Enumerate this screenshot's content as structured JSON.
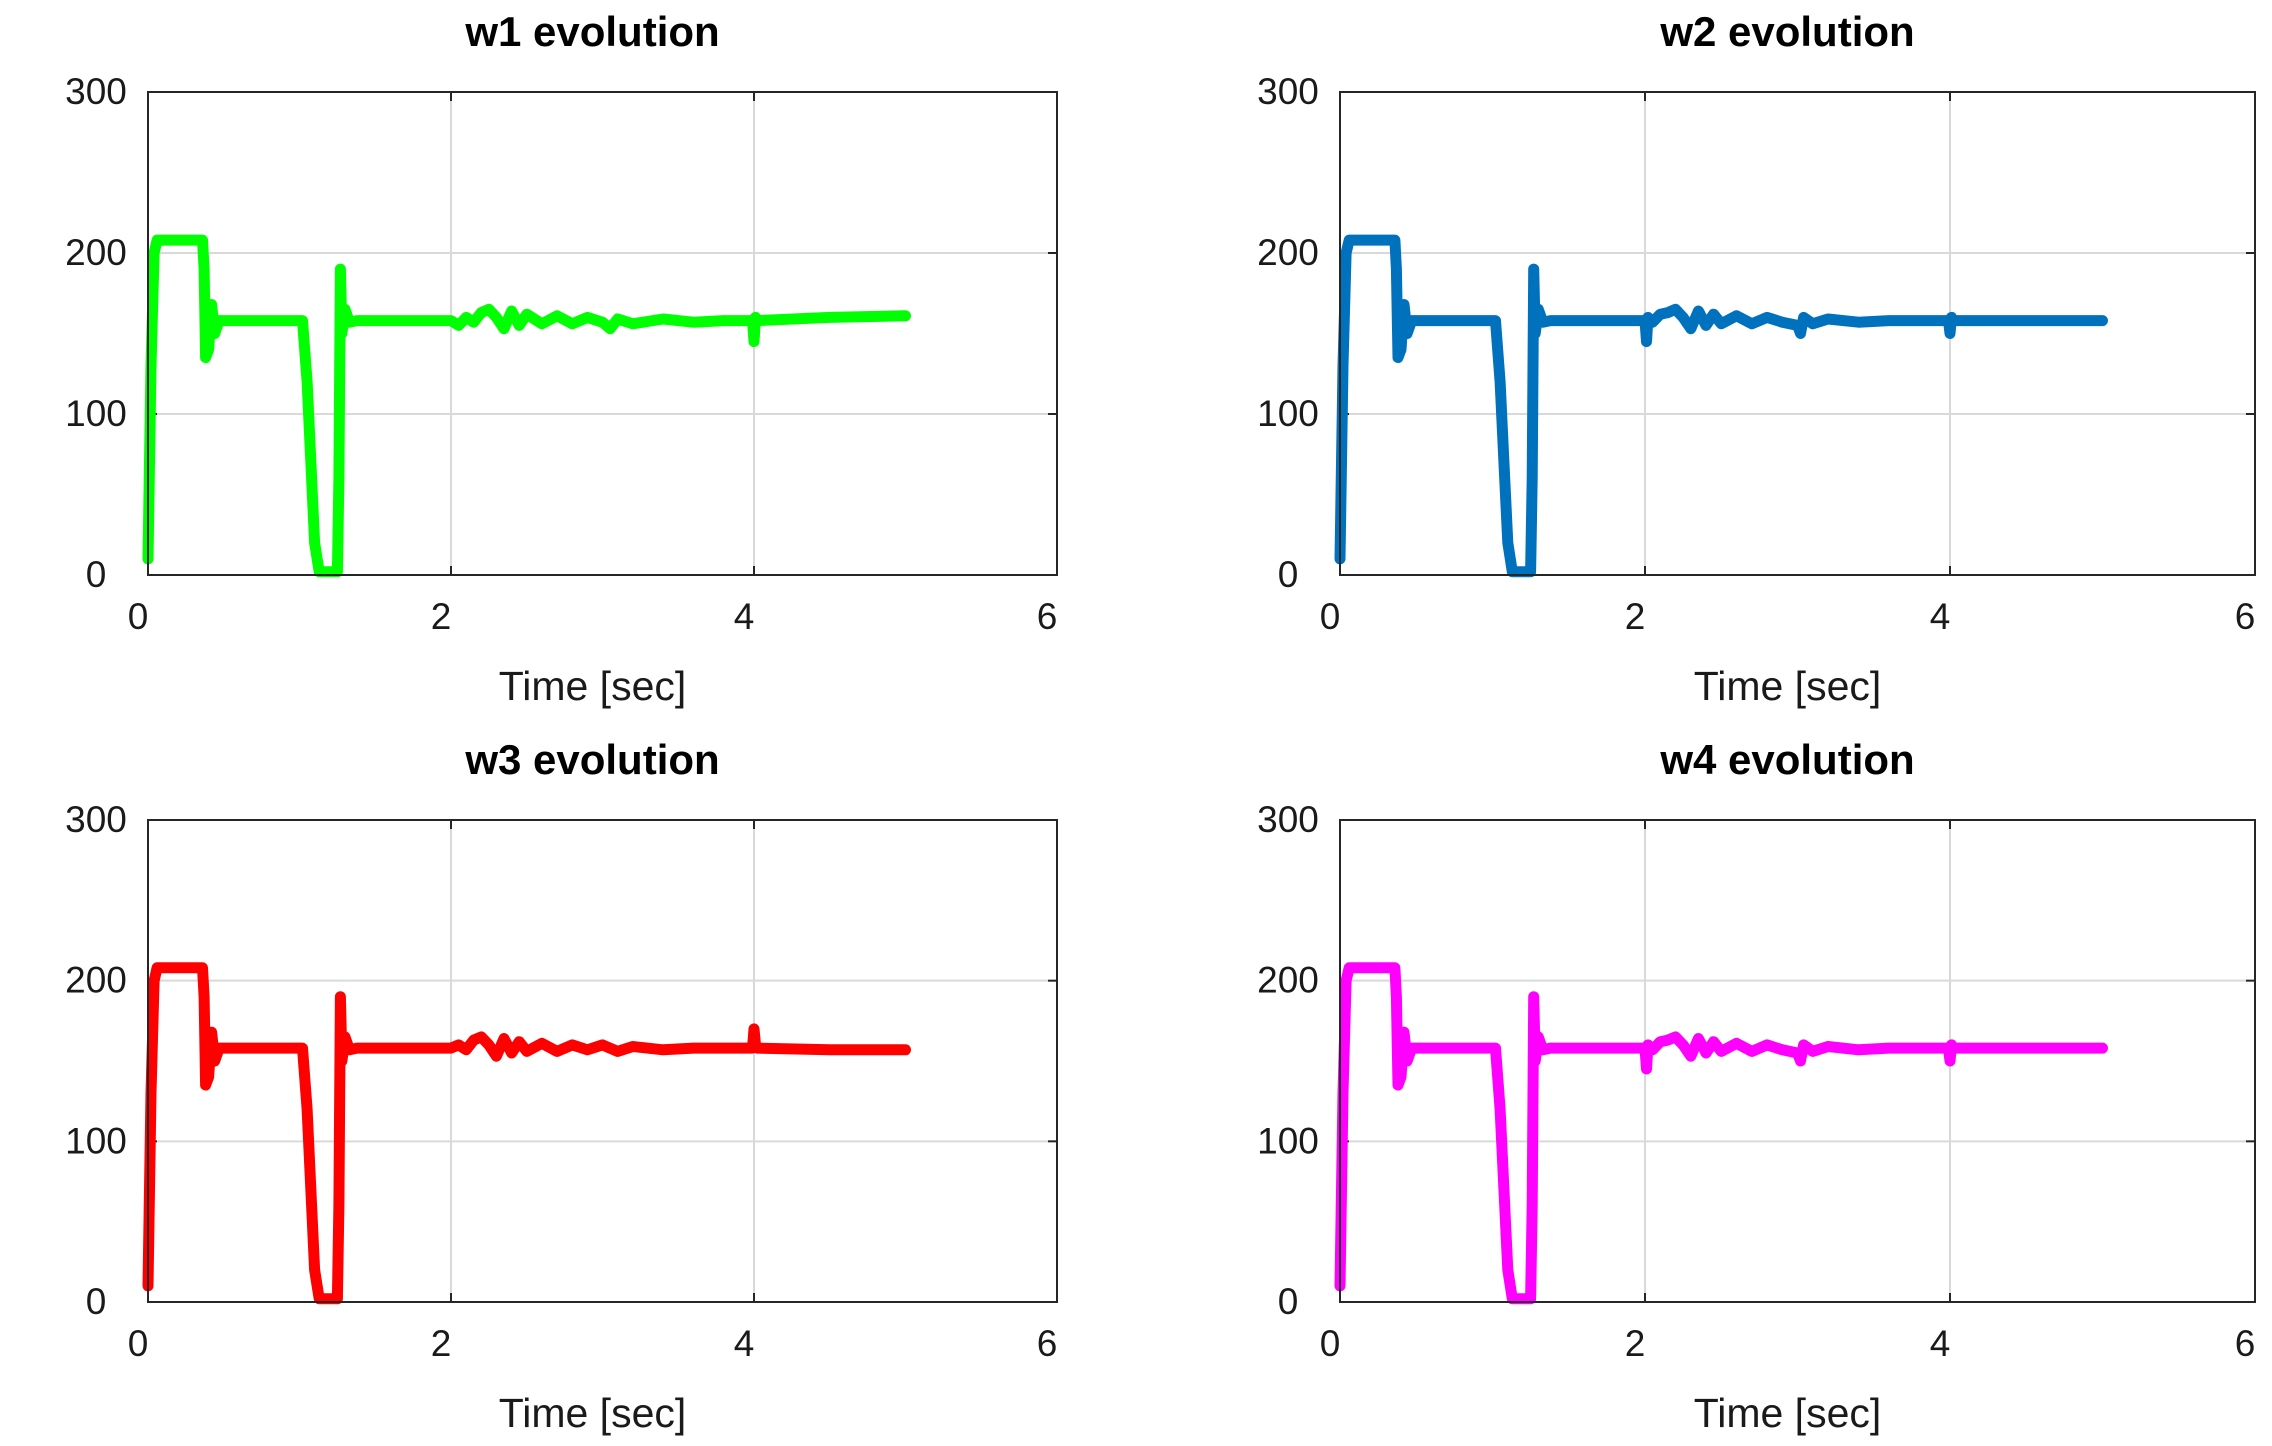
{
  "chart_data": [
    {
      "type": "line",
      "title": "w1 evolution",
      "xlabel": "Time [sec]",
      "ylabel": "",
      "xlim": [
        0,
        6
      ],
      "ylim": [
        0,
        300
      ],
      "xticks": [
        0,
        2,
        4,
        6
      ],
      "yticks": [
        0,
        100,
        200,
        300
      ],
      "grid": true,
      "series": [
        {
          "name": "w1",
          "color": "#00ff00",
          "x": [
            0,
            0.02,
            0.04,
            0.06,
            0.36,
            0.37,
            0.38,
            0.4,
            0.42,
            0.44,
            0.47,
            1.02,
            1.05,
            1.08,
            1.1,
            1.13,
            1.2,
            1.25,
            1.26,
            1.27,
            1.28,
            1.3,
            1.33,
            1.38,
            2.0,
            2.05,
            2.1,
            2.15,
            2.2,
            2.25,
            2.3,
            2.35,
            2.4,
            2.45,
            2.5,
            2.6,
            2.7,
            2.8,
            2.9,
            3.0,
            3.05,
            3.1,
            3.2,
            3.4,
            3.6,
            3.8,
            3.99,
            4.0,
            4.01,
            4.02,
            4.5,
            5.0
          ],
          "y": [
            10,
            130,
            200,
            208,
            208,
            190,
            135,
            140,
            168,
            150,
            158,
            158,
            120,
            60,
            20,
            2,
            2,
            2,
            60,
            190,
            150,
            165,
            157,
            158,
            158,
            155,
            160,
            157,
            163,
            165,
            160,
            153,
            164,
            155,
            162,
            156,
            161,
            156,
            160,
            157,
            153,
            159,
            156,
            159,
            157,
            158,
            158,
            145,
            160,
            158,
            160,
            161
          ]
        }
      ]
    },
    {
      "type": "line",
      "title": "w2 evolution",
      "xlabel": "Time [sec]",
      "ylabel": "",
      "xlim": [
        0,
        6
      ],
      "ylim": [
        0,
        300
      ],
      "xticks": [
        0,
        2,
        4,
        6
      ],
      "yticks": [
        0,
        100,
        200,
        300
      ],
      "grid": true,
      "series": [
        {
          "name": "w2",
          "color": "#0072bd",
          "x": [
            0,
            0.02,
            0.04,
            0.06,
            0.36,
            0.37,
            0.38,
            0.4,
            0.42,
            0.44,
            0.47,
            1.02,
            1.05,
            1.08,
            1.1,
            1.13,
            1.2,
            1.25,
            1.26,
            1.27,
            1.28,
            1.3,
            1.33,
            1.38,
            2.0,
            2.01,
            2.02,
            2.05,
            2.1,
            2.15,
            2.2,
            2.25,
            2.3,
            2.35,
            2.4,
            2.45,
            2.5,
            2.6,
            2.7,
            2.8,
            2.9,
            3.0,
            3.02,
            3.04,
            3.1,
            3.2,
            3.4,
            3.6,
            3.8,
            3.99,
            4.0,
            4.01,
            4.02,
            4.5,
            5.0
          ],
          "y": [
            10,
            130,
            200,
            208,
            208,
            190,
            135,
            140,
            168,
            150,
            158,
            158,
            120,
            60,
            20,
            2,
            2,
            2,
            60,
            190,
            150,
            165,
            157,
            158,
            158,
            145,
            160,
            157,
            162,
            163,
            165,
            160,
            153,
            164,
            155,
            162,
            156,
            161,
            156,
            160,
            157,
            155,
            150,
            160,
            156,
            159,
            157,
            158,
            158,
            158,
            150,
            160,
            158,
            158,
            158
          ]
        }
      ]
    },
    {
      "type": "line",
      "title": "w3 evolution",
      "xlabel": "Time [sec]",
      "ylabel": "",
      "xlim": [
        0,
        6
      ],
      "ylim": [
        0,
        300
      ],
      "xticks": [
        0,
        2,
        4,
        6
      ],
      "yticks": [
        0,
        100,
        200,
        300
      ],
      "grid": true,
      "series": [
        {
          "name": "w3",
          "color": "#ff0000",
          "x": [
            0,
            0.02,
            0.04,
            0.06,
            0.36,
            0.37,
            0.38,
            0.4,
            0.42,
            0.44,
            0.47,
            1.02,
            1.05,
            1.08,
            1.1,
            1.13,
            1.2,
            1.25,
            1.26,
            1.27,
            1.28,
            1.3,
            1.33,
            1.38,
            2.0,
            2.05,
            2.1,
            2.15,
            2.2,
            2.25,
            2.3,
            2.35,
            2.4,
            2.45,
            2.5,
            2.6,
            2.7,
            2.8,
            2.9,
            3.0,
            3.1,
            3.2,
            3.4,
            3.6,
            3.8,
            3.99,
            4.0,
            4.01,
            4.02,
            4.5,
            5.0
          ],
          "y": [
            10,
            130,
            200,
            208,
            208,
            190,
            135,
            140,
            168,
            150,
            158,
            158,
            120,
            60,
            20,
            2,
            2,
            2,
            60,
            190,
            150,
            165,
            157,
            158,
            158,
            160,
            157,
            163,
            165,
            160,
            153,
            164,
            155,
            162,
            156,
            161,
            156,
            160,
            157,
            160,
            156,
            159,
            157,
            158,
            158,
            158,
            170,
            160,
            158,
            157,
            157
          ]
        }
      ]
    },
    {
      "type": "line",
      "title": "w4 evolution",
      "xlabel": "Time [sec]",
      "ylabel": "",
      "xlim": [
        0,
        6
      ],
      "ylim": [
        0,
        300
      ],
      "xticks": [
        0,
        2,
        4,
        6
      ],
      "yticks": [
        0,
        100,
        200,
        300
      ],
      "grid": true,
      "series": [
        {
          "name": "w4",
          "color": "#ff00ff",
          "x": [
            0,
            0.02,
            0.04,
            0.06,
            0.36,
            0.37,
            0.38,
            0.4,
            0.42,
            0.44,
            0.47,
            1.02,
            1.05,
            1.08,
            1.1,
            1.13,
            1.2,
            1.25,
            1.26,
            1.27,
            1.28,
            1.3,
            1.33,
            1.38,
            2.0,
            2.01,
            2.02,
            2.05,
            2.1,
            2.15,
            2.2,
            2.25,
            2.3,
            2.35,
            2.4,
            2.45,
            2.5,
            2.6,
            2.7,
            2.8,
            2.9,
            3.0,
            3.02,
            3.04,
            3.1,
            3.2,
            3.4,
            3.6,
            3.8,
            3.99,
            4.0,
            4.01,
            4.02,
            4.5,
            5.0
          ],
          "y": [
            10,
            130,
            200,
            208,
            208,
            190,
            135,
            140,
            168,
            150,
            158,
            158,
            120,
            60,
            20,
            2,
            2,
            2,
            60,
            190,
            150,
            165,
            157,
            158,
            158,
            145,
            160,
            157,
            162,
            163,
            165,
            160,
            153,
            164,
            155,
            162,
            156,
            161,
            156,
            160,
            157,
            155,
            150,
            160,
            156,
            159,
            157,
            158,
            158,
            158,
            150,
            160,
            158,
            158,
            158
          ]
        }
      ]
    }
  ]
}
